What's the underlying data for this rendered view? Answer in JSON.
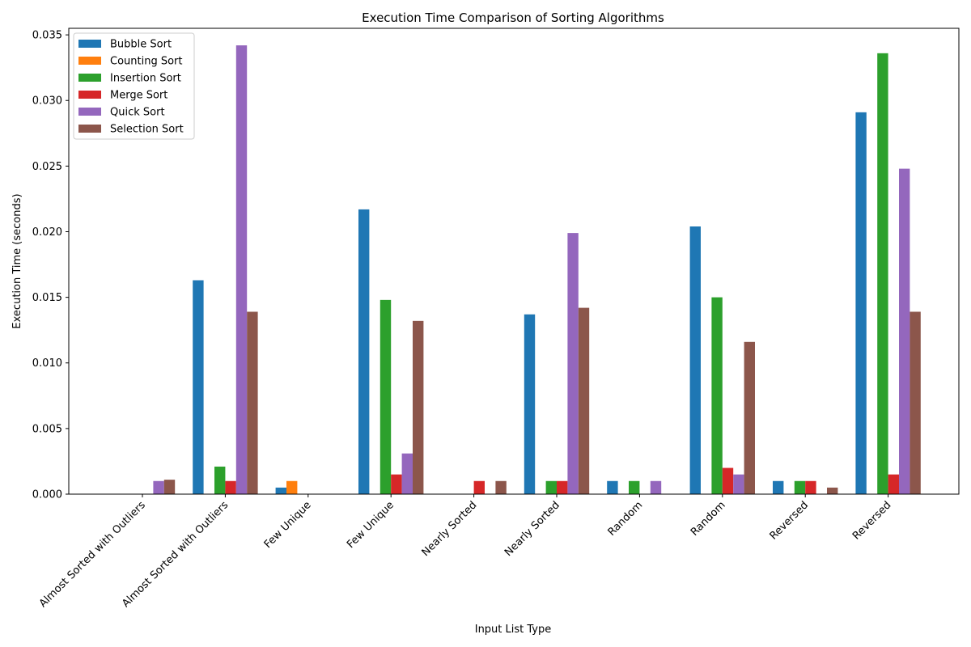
{
  "chart_data": {
    "type": "bar",
    "title": "Execution Time Comparison of Sorting Algorithms",
    "xlabel": "Input List Type",
    "ylabel": "Execution Time (seconds)",
    "ylim": [
      0,
      0.0355
    ],
    "yticks": [
      "0.000",
      "0.005",
      "0.010",
      "0.015",
      "0.020",
      "0.025",
      "0.030",
      "0.035"
    ],
    "ytick_values": [
      0,
      0.005,
      0.01,
      0.015,
      0.02,
      0.025,
      0.03,
      0.035
    ],
    "categories": [
      "Almost Sorted with Outliers",
      "Almost Sorted with Outliers",
      "Few Unique",
      "Few Unique",
      "Nearly Sorted",
      "Nearly Sorted",
      "Random",
      "Random",
      "Reversed",
      "Reversed"
    ],
    "legend_position": "top-left",
    "grid": false,
    "series": [
      {
        "name": "Bubble Sort",
        "color": "#1f77b4",
        "values": [
          0,
          0.0163,
          0.0005,
          0.0217,
          0,
          0.0137,
          0.001,
          0.0204,
          0.001,
          0.0291
        ]
      },
      {
        "name": "Counting Sort",
        "color": "#ff7f0e",
        "values": [
          0,
          0,
          0.001,
          0,
          0,
          0,
          0,
          0,
          0,
          0
        ]
      },
      {
        "name": "Insertion Sort",
        "color": "#2ca02c",
        "values": [
          0,
          0.0021,
          0,
          0.0148,
          0,
          0.001,
          0.001,
          0.015,
          0.001,
          0.0336
        ]
      },
      {
        "name": "Merge Sort",
        "color": "#d62728",
        "values": [
          0,
          0.001,
          0,
          0.0015,
          0.001,
          0.001,
          0,
          0.002,
          0.001,
          0.0015
        ]
      },
      {
        "name": "Quick Sort",
        "color": "#9467bd",
        "values": [
          0.001,
          0.0342,
          0,
          0.0031,
          0,
          0.0199,
          0.001,
          0.0015,
          0,
          0.0248
        ]
      },
      {
        "name": "Selection Sort",
        "color": "#8c564b",
        "values": [
          0.0011,
          0.0139,
          0,
          0.0132,
          0.001,
          0.0142,
          0,
          0.0116,
          0.0005,
          0.0139
        ]
      }
    ]
  }
}
